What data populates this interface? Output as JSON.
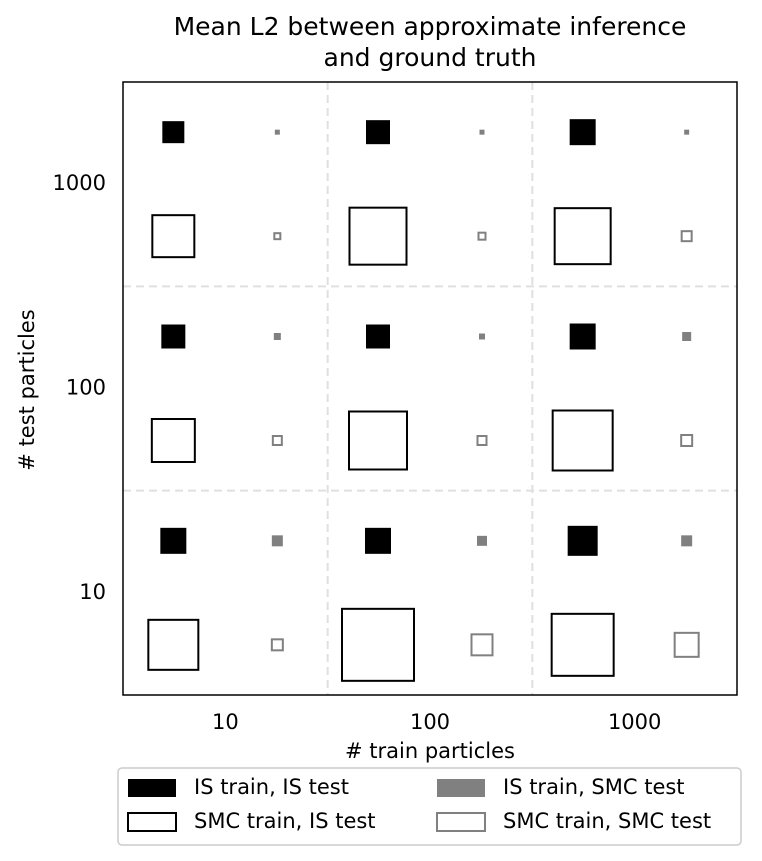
{
  "chart_data": {
    "type": "hinton",
    "title": [
      "Mean L2 between approximate inference",
      "and ground truth"
    ],
    "x_label": "# train particles",
    "y_label": "# test particles",
    "x_categories": [
      "10",
      "100",
      "1000"
    ],
    "y_categories": [
      "10",
      "100",
      "1000"
    ],
    "grid": true,
    "legend": "lower center",
    "series": [
      {
        "name": "IS train, IS test",
        "color": "#000000",
        "filled": true,
        "values": [
          [
            26,
            26,
            30
          ],
          [
            24,
            24,
            26
          ],
          [
            22,
            24,
            26
          ]
        ]
      },
      {
        "name": "IS train, SMC test",
        "color": "#808080",
        "filled": true,
        "values": [
          [
            11,
            10,
            11
          ],
          [
            7,
            6,
            9
          ],
          [
            5,
            5,
            5
          ]
        ]
      },
      {
        "name": "SMC train, IS test",
        "color": "#000000",
        "filled": false,
        "values": [
          [
            50,
            72,
            62
          ],
          [
            43,
            58,
            60
          ],
          [
            42,
            57,
            56
          ]
        ]
      },
      {
        "name": "SMC train, SMC test",
        "color": "#808080",
        "filled": false,
        "values": [
          [
            11,
            21,
            24
          ],
          [
            9,
            9,
            11
          ],
          [
            6,
            7,
            10
          ]
        ]
      }
    ]
  }
}
